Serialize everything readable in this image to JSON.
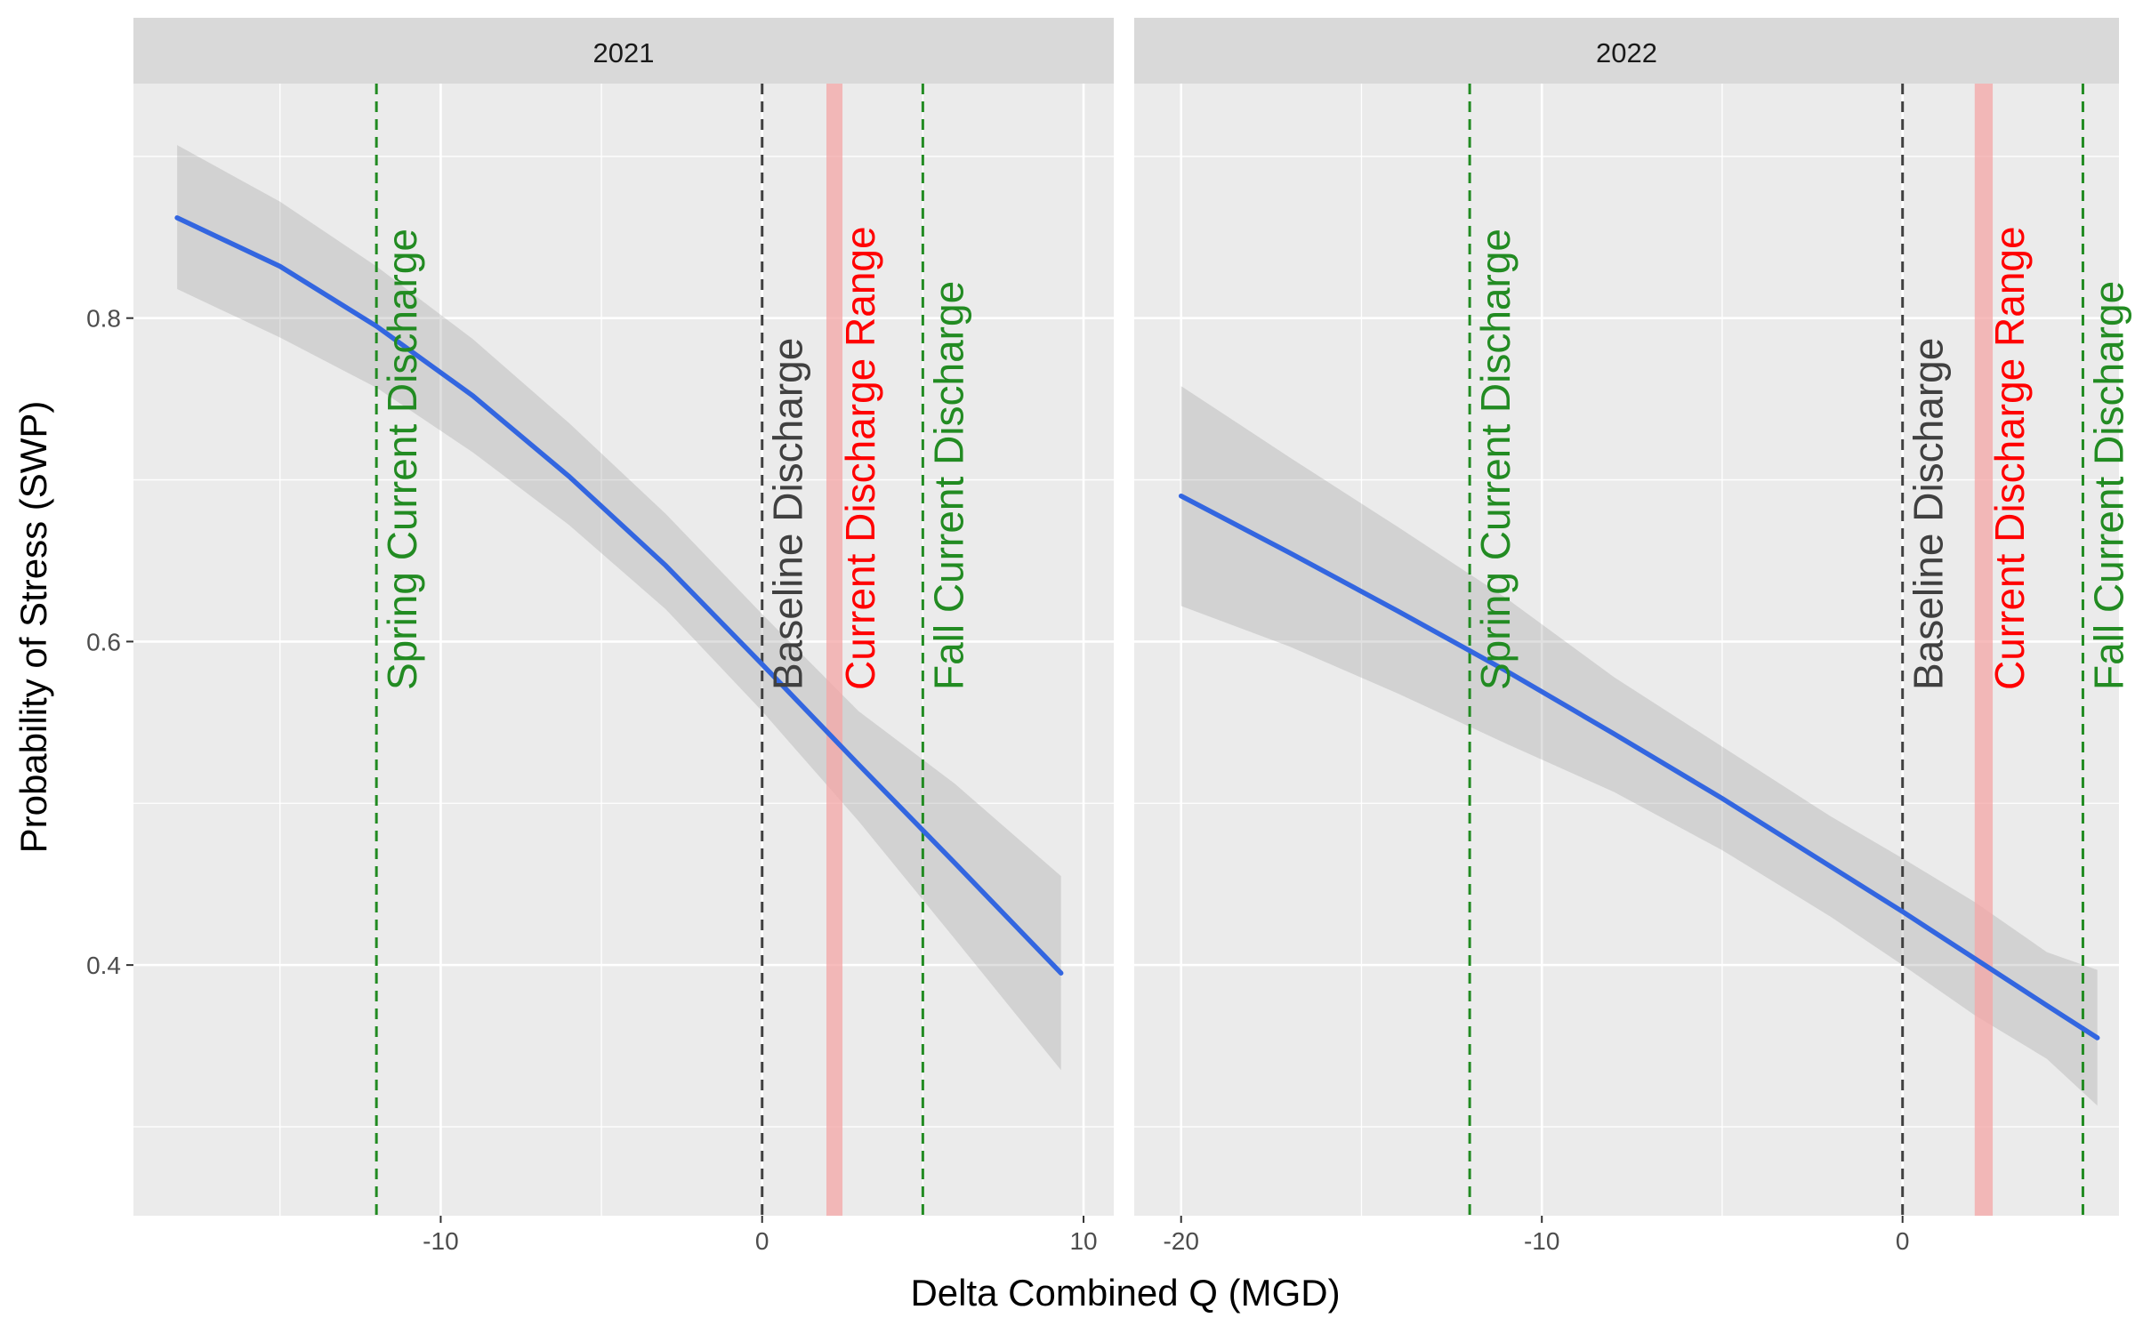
{
  "chart_data": {
    "type": "line",
    "xlabel": "Delta Combined Q (MGD)",
    "ylabel": "Probability of Stress (SWP)",
    "ylim": [
      0.245,
      0.945
    ],
    "y_ticks": [
      0.4,
      0.6,
      0.8
    ],
    "y_tick_labels": [
      "0.4",
      "0.6",
      "0.8"
    ],
    "grid": true,
    "legend": "none",
    "colors": {
      "panel_background": "#EBEBEB",
      "strip_background": "#D9D9D9",
      "fit_line": "#3366E0",
      "confidence_band": "#999999",
      "spring_fall": "#228B22",
      "baseline": "#404040",
      "current_range": "#F4A6A6",
      "current_label": "#FF0000"
    },
    "panels": [
      {
        "strip": "2021",
        "xlim": [
          -19.56,
          10.94
        ],
        "x_ticks": [
          -10,
          0,
          10
        ],
        "x_tick_labels": [
          "-10",
          "0",
          "10"
        ],
        "x_minor": [
          -15,
          -5,
          5
        ],
        "fit": {
          "x": [
            -18.2,
            -15,
            -12,
            -9,
            -6,
            -3,
            0,
            3,
            6,
            9.3
          ],
          "y": [
            0.862,
            0.832,
            0.795,
            0.752,
            0.702,
            0.647,
            0.586,
            0.524,
            0.463,
            0.395
          ],
          "upper": [
            0.907,
            0.872,
            0.832,
            0.787,
            0.735,
            0.679,
            0.617,
            0.557,
            0.512,
            0.455
          ],
          "lower": [
            0.818,
            0.788,
            0.757,
            0.717,
            0.672,
            0.62,
            0.557,
            0.489,
            0.416,
            0.335
          ]
        },
        "reference_lines": [
          {
            "kind": "spring",
            "x": -12,
            "label": "Spring Current Discharge"
          },
          {
            "kind": "baseline",
            "x": 0,
            "label": "Baseline Discharge"
          },
          {
            "kind": "fall",
            "x": 5,
            "label": "Fall Current Discharge"
          }
        ],
        "current_range": {
          "x_min": 2,
          "x_max": 2.5,
          "label": "Current Discharge Range"
        }
      },
      {
        "strip": "2022",
        "xlim": [
          -21.3,
          6.0
        ],
        "x_ticks": [
          -20,
          -10,
          0
        ],
        "x_tick_labels": [
          "-20",
          "-10",
          "0"
        ],
        "x_minor": [
          -15,
          -5
        ],
        "fit": {
          "x": [
            -20,
            -17,
            -14,
            -11,
            -8,
            -5,
            -2,
            0,
            2,
            4,
            5.4
          ],
          "y": [
            0.69,
            0.655,
            0.619,
            0.582,
            0.543,
            0.503,
            0.461,
            0.433,
            0.404,
            0.375,
            0.355
          ],
          "upper": [
            0.758,
            0.714,
            0.671,
            0.627,
            0.578,
            0.535,
            0.492,
            0.466,
            0.439,
            0.408,
            0.397
          ],
          "lower": [
            0.622,
            0.597,
            0.568,
            0.537,
            0.507,
            0.471,
            0.43,
            0.4,
            0.369,
            0.342,
            0.313
          ]
        },
        "reference_lines": [
          {
            "kind": "spring",
            "x": -12,
            "label": "Spring Current Discharge"
          },
          {
            "kind": "baseline",
            "x": 0,
            "label": "Baseline Discharge"
          },
          {
            "kind": "fall",
            "x": 5,
            "label": "Fall Current Discharge"
          }
        ],
        "current_range": {
          "x_min": 2,
          "x_max": 2.5,
          "label": "Current Discharge Range"
        }
      }
    ]
  }
}
